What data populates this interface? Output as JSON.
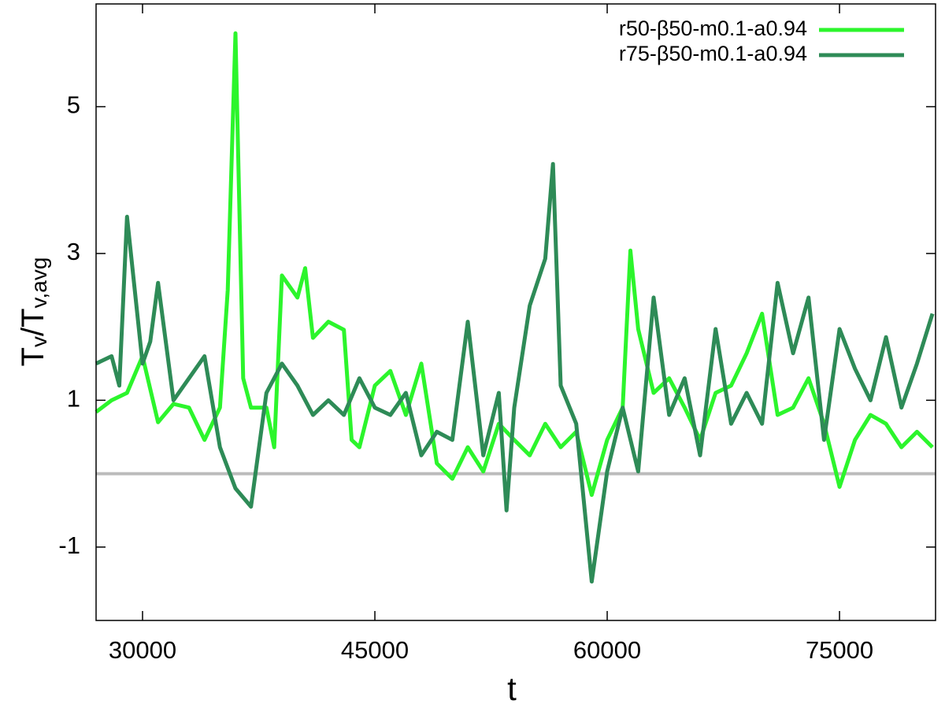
{
  "chart_data": {
    "type": "line",
    "xlabel": "t",
    "ylabel": [
      "T",
      "v",
      "/T",
      "v,avg"
    ],
    "xlim": [
      27000,
      81200
    ],
    "ylim": [
      -2,
      6.4
    ],
    "xticks": [
      30000,
      45000,
      60000,
      75000
    ],
    "yticks": [
      -1,
      1,
      3,
      5
    ],
    "grid": false,
    "legend": "upper right",
    "reference_line": {
      "value": 0,
      "color": "#bbbbbb"
    },
    "series": [
      {
        "name": "r50-β50-m0.1-a0.94",
        "color": "#2cf52c",
        "x": [
          27000,
          28000,
          29000,
          30000,
          31000,
          32000,
          33000,
          34000,
          35000,
          35500,
          36000,
          36500,
          37000,
          38000,
          38500,
          39000,
          40000,
          40500,
          41000,
          42000,
          43000,
          43500,
          44000,
          45000,
          46000,
          47000,
          48000,
          49000,
          50000,
          51000,
          52000,
          53000,
          54000,
          55000,
          56000,
          57000,
          58000,
          59000,
          60000,
          61000,
          61500,
          62000,
          63000,
          64000,
          65000,
          66000,
          67000,
          68000,
          69000,
          70000,
          71000,
          72000,
          73000,
          74000,
          75000,
          76000,
          77000,
          78000,
          79000,
          80000,
          81000
        ],
        "values": [
          0.84,
          1.0,
          1.1,
          1.6,
          0.7,
          0.95,
          0.9,
          0.46,
          0.9,
          2.5,
          6.0,
          1.3,
          0.9,
          0.9,
          0.36,
          2.7,
          2.4,
          2.8,
          1.85,
          2.07,
          1.96,
          0.46,
          0.36,
          1.2,
          1.4,
          0.8,
          1.5,
          0.14,
          -0.07,
          0.36,
          0.03,
          0.68,
          0.46,
          0.25,
          0.68,
          0.36,
          0.57,
          -0.29,
          0.46,
          0.9,
          3.04,
          1.97,
          1.1,
          1.3,
          0.9,
          0.46,
          1.1,
          1.2,
          1.64,
          2.18,
          0.8,
          0.9,
          1.3,
          0.68,
          -0.18,
          0.46,
          0.8,
          0.68,
          0.36,
          0.57,
          0.36
        ]
      },
      {
        "name": "r75-β50-m0.1-a0.94",
        "color": "#2e8b57",
        "x": [
          27000,
          28000,
          28500,
          29000,
          30000,
          30500,
          31000,
          32000,
          33000,
          34000,
          35000,
          36000,
          37000,
          38000,
          39000,
          40000,
          41000,
          42000,
          43000,
          44000,
          45000,
          46000,
          47000,
          48000,
          49000,
          50000,
          51000,
          52000,
          53000,
          53500,
          54000,
          55000,
          56000,
          56500,
          57000,
          58000,
          59000,
          60000,
          61000,
          62000,
          63000,
          64000,
          65000,
          66000,
          67000,
          68000,
          69000,
          70000,
          71000,
          72000,
          73000,
          74000,
          75000,
          76000,
          77000,
          78000,
          79000,
          80000,
          81000
        ],
        "values": [
          1.5,
          1.6,
          1.2,
          3.5,
          1.5,
          1.8,
          2.6,
          1.0,
          1.3,
          1.6,
          0.36,
          -0.2,
          -0.45,
          1.1,
          1.5,
          1.2,
          0.8,
          1.0,
          0.8,
          1.3,
          0.9,
          0.8,
          1.1,
          0.25,
          0.57,
          0.46,
          2.07,
          0.25,
          1.1,
          -0.5,
          0.9,
          2.29,
          2.93,
          4.22,
          1.2,
          0.68,
          -1.47,
          0.03,
          0.9,
          0.03,
          2.4,
          0.8,
          1.3,
          0.25,
          1.97,
          0.68,
          1.1,
          0.68,
          2.6,
          1.64,
          2.4,
          0.46,
          1.97,
          1.43,
          1.0,
          1.86,
          0.9,
          1.5,
          2.18
        ]
      }
    ]
  }
}
